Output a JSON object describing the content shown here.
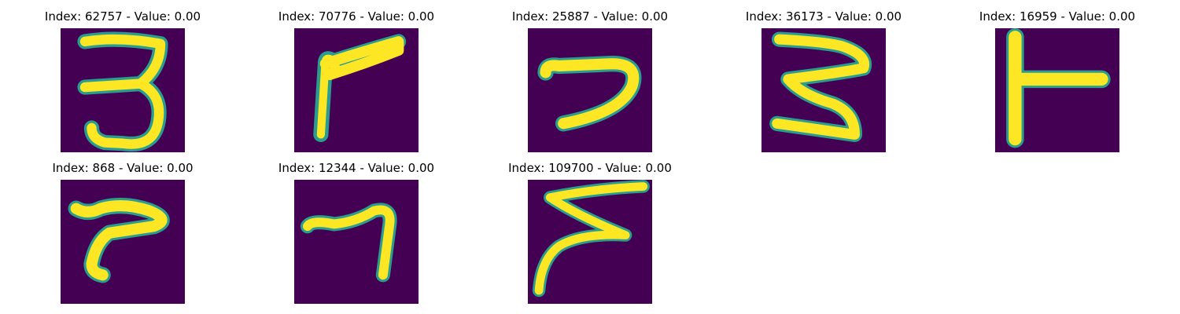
{
  "figure": {
    "background_color": "#440154",
    "stroke_color": "#fde725",
    "edge_color": "#2a9d8f",
    "panels": [
      {
        "title": "Index: 62757 - Value: 0.00"
      },
      {
        "title": "Index: 70776 - Value: 0.00"
      },
      {
        "title": "Index: 25887 - Value: 0.00"
      },
      {
        "title": "Index: 36173 - Value: 0.00"
      },
      {
        "title": "Index: 16959 - Value: 0.00"
      },
      {
        "title": "Index: 868 - Value: 0.00"
      },
      {
        "title": "Index: 12344 - Value: 0.00"
      },
      {
        "title": "Index: 109700 - Value: 0.00"
      }
    ]
  }
}
